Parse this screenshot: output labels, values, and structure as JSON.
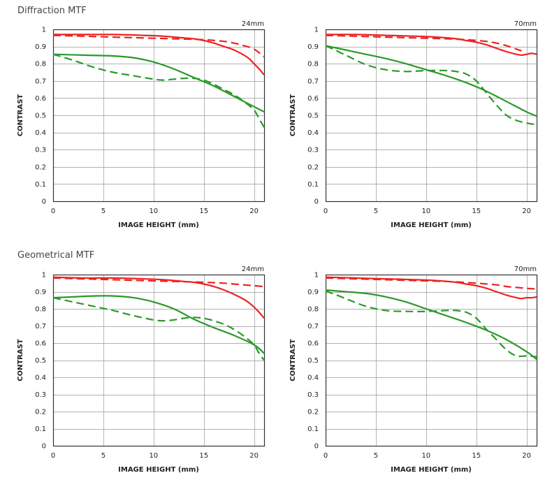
{
  "sections": {
    "diffraction": "Diffraction MTF",
    "geometrical": "Geometrical MTF"
  },
  "colors": {
    "red": "#ee2222",
    "green": "#2a9a2a",
    "grid": "#999999",
    "frame": "#333333"
  },
  "chart_data": [
    {
      "type": "line",
      "section": "Diffraction MTF",
      "focal_label": "24mm",
      "xlabel": "IMAGE HEIGHT (mm)",
      "ylabel": "CONTRAST",
      "xlim": [
        0,
        21
      ],
      "ylim": [
        0,
        1
      ],
      "xticks": [
        0,
        5,
        10,
        15,
        20
      ],
      "yticks": [
        0,
        0.1,
        0.2,
        0.3,
        0.4,
        0.5,
        0.6,
        0.7,
        0.8,
        0.9,
        1
      ],
      "ytick_labels": [
        "0",
        "0.1",
        "0.2",
        "0.3",
        "0.4",
        "0.5",
        "0.6",
        "0.7",
        "0.8",
        "0.9",
        "1"
      ],
      "grid": true,
      "series": [
        {
          "color": "red",
          "style": "solid",
          "x": [
            0,
            3,
            6,
            9,
            11,
            13,
            14,
            15,
            16,
            17,
            18,
            19,
            19.5,
            20,
            20.5,
            21
          ],
          "y": [
            0.97,
            0.97,
            0.97,
            0.965,
            0.96,
            0.95,
            0.945,
            0.935,
            0.92,
            0.9,
            0.88,
            0.85,
            0.83,
            0.8,
            0.77,
            0.735
          ]
        },
        {
          "color": "red",
          "style": "dashed",
          "x": [
            0,
            3,
            6,
            9,
            12,
            15,
            17,
            18,
            19,
            20,
            21
          ],
          "y": [
            0.965,
            0.96,
            0.955,
            0.95,
            0.945,
            0.94,
            0.93,
            0.92,
            0.905,
            0.885,
            0.84
          ]
        },
        {
          "color": "green",
          "style": "solid",
          "x": [
            0,
            3,
            6,
            8,
            10,
            12,
            14,
            16,
            18,
            20,
            21
          ],
          "y": [
            0.855,
            0.85,
            0.845,
            0.835,
            0.81,
            0.77,
            0.72,
            0.67,
            0.61,
            0.55,
            0.52
          ]
        },
        {
          "color": "green",
          "style": "dashed",
          "x": [
            0,
            2,
            4,
            6,
            8,
            10,
            11,
            12,
            13,
            14,
            15,
            16,
            17,
            18,
            19,
            20,
            20.5,
            21
          ],
          "y": [
            0.855,
            0.82,
            0.78,
            0.75,
            0.73,
            0.71,
            0.705,
            0.71,
            0.715,
            0.715,
            0.705,
            0.68,
            0.65,
            0.62,
            0.58,
            0.53,
            0.48,
            0.43
          ]
        }
      ]
    },
    {
      "type": "line",
      "section": "Diffraction MTF",
      "focal_label": "70mm",
      "xlabel": "IMAGE HEIGHT (mm)",
      "ylabel": "CONTRAST",
      "xlim": [
        0,
        21
      ],
      "ylim": [
        0,
        1
      ],
      "xticks": [
        0,
        5,
        10,
        15,
        20
      ],
      "yticks": [
        0,
        0.1,
        0.2,
        0.3,
        0.4,
        0.5,
        0.6,
        0.7,
        0.8,
        0.9,
        1
      ],
      "ytick_labels": [
        "0",
        "0.1",
        "0.2",
        "0.3",
        "0.4",
        "0.5",
        "0.6",
        "0.7",
        "0.8",
        "0.9",
        "1"
      ],
      "grid": true,
      "series": [
        {
          "color": "red",
          "style": "solid",
          "x": [
            0,
            3,
            6,
            9,
            11,
            13,
            14,
            15,
            16,
            17,
            18,
            19,
            19.5,
            20,
            20.5,
            21
          ],
          "y": [
            0.97,
            0.97,
            0.965,
            0.96,
            0.955,
            0.945,
            0.935,
            0.925,
            0.91,
            0.89,
            0.87,
            0.855,
            0.85,
            0.855,
            0.86,
            0.855
          ]
        },
        {
          "color": "red",
          "style": "dashed",
          "x": [
            0,
            3,
            6,
            9,
            12,
            14,
            16,
            17,
            18,
            19,
            19.5
          ],
          "y": [
            0.965,
            0.96,
            0.955,
            0.95,
            0.945,
            0.94,
            0.93,
            0.92,
            0.905,
            0.885,
            0.875
          ]
        },
        {
          "color": "green",
          "style": "solid",
          "x": [
            0,
            2,
            4,
            6,
            8,
            10,
            12,
            14,
            16,
            18,
            20,
            21
          ],
          "y": [
            0.905,
            0.88,
            0.855,
            0.83,
            0.8,
            0.765,
            0.73,
            0.69,
            0.64,
            0.58,
            0.52,
            0.495
          ]
        },
        {
          "color": "green",
          "style": "dashed",
          "x": [
            0,
            2,
            4,
            6,
            8,
            10,
            12,
            13,
            14,
            15,
            16,
            17,
            18,
            19,
            20,
            21
          ],
          "y": [
            0.905,
            0.85,
            0.795,
            0.765,
            0.755,
            0.76,
            0.76,
            0.755,
            0.74,
            0.7,
            0.63,
            0.56,
            0.5,
            0.47,
            0.455,
            0.445
          ]
        }
      ]
    },
    {
      "type": "line",
      "section": "Geometrical MTF",
      "focal_label": "24mm",
      "xlabel": "IMAGE HEIGHT (mm)",
      "ylabel": "CONTRAST",
      "xlim": [
        0,
        21
      ],
      "ylim": [
        0,
        1
      ],
      "xticks": [
        0,
        5,
        10,
        15,
        20
      ],
      "yticks": [
        0,
        0.1,
        0.2,
        0.3,
        0.4,
        0.5,
        0.6,
        0.7,
        0.8,
        0.9,
        1
      ],
      "ytick_labels": [
        "0",
        "0.1",
        "0.2",
        "0.3",
        "0.4",
        "0.5",
        "0.6",
        "0.7",
        "0.8",
        "0.9",
        "1"
      ],
      "grid": true,
      "series": [
        {
          "color": "red",
          "style": "solid",
          "x": [
            0,
            3,
            6,
            9,
            11,
            13,
            14,
            15,
            16,
            17,
            18,
            19,
            19.5,
            20,
            20.5,
            21
          ],
          "y": [
            0.985,
            0.98,
            0.98,
            0.975,
            0.97,
            0.96,
            0.955,
            0.945,
            0.93,
            0.91,
            0.885,
            0.855,
            0.835,
            0.81,
            0.78,
            0.745
          ]
        },
        {
          "color": "red",
          "style": "dashed",
          "x": [
            0,
            3,
            6,
            9,
            12,
            15,
            17,
            18,
            19,
            20,
            21
          ],
          "y": [
            0.98,
            0.975,
            0.97,
            0.965,
            0.96,
            0.955,
            0.95,
            0.945,
            0.94,
            0.935,
            0.93
          ]
        },
        {
          "color": "green",
          "style": "solid",
          "x": [
            0,
            2,
            4,
            6,
            8,
            10,
            12,
            14,
            16,
            18,
            20,
            21
          ],
          "y": [
            0.865,
            0.87,
            0.875,
            0.875,
            0.865,
            0.84,
            0.8,
            0.74,
            0.69,
            0.645,
            0.59,
            0.54
          ]
        },
        {
          "color": "green",
          "style": "dashed",
          "x": [
            0,
            2,
            4,
            6,
            8,
            10,
            11,
            12,
            13,
            14,
            15,
            16,
            17,
            18,
            19,
            20,
            20.5,
            21
          ],
          "y": [
            0.865,
            0.84,
            0.815,
            0.79,
            0.76,
            0.735,
            0.73,
            0.735,
            0.745,
            0.75,
            0.745,
            0.73,
            0.71,
            0.68,
            0.64,
            0.59,
            0.54,
            0.5
          ]
        }
      ]
    },
    {
      "type": "line",
      "section": "Geometrical MTF",
      "focal_label": "70mm",
      "xlabel": "IMAGE HEIGHT (mm)",
      "ylabel": "CONTRAST",
      "xlim": [
        0,
        21
      ],
      "ylim": [
        0,
        1
      ],
      "xticks": [
        0,
        5,
        10,
        15,
        20
      ],
      "yticks": [
        0,
        0.1,
        0.2,
        0.3,
        0.4,
        0.5,
        0.6,
        0.7,
        0.8,
        0.9,
        1
      ],
      "ytick_labels": [
        "0",
        "0.1",
        "0.2",
        "0.3",
        "0.4",
        "0.5",
        "0.6",
        "0.7",
        "0.8",
        "0.9",
        "1"
      ],
      "grid": true,
      "series": [
        {
          "color": "red",
          "style": "solid",
          "x": [
            0,
            3,
            6,
            9,
            11,
            13,
            14,
            15,
            16,
            17,
            18,
            19,
            19.5,
            20,
            20.5,
            21
          ],
          "y": [
            0.985,
            0.98,
            0.975,
            0.97,
            0.965,
            0.955,
            0.945,
            0.935,
            0.92,
            0.9,
            0.88,
            0.865,
            0.86,
            0.865,
            0.865,
            0.87
          ]
        },
        {
          "color": "red",
          "style": "dashed",
          "x": [
            0,
            3,
            6,
            9,
            12,
            15,
            17,
            18,
            19,
            20,
            21
          ],
          "y": [
            0.98,
            0.975,
            0.97,
            0.965,
            0.96,
            0.95,
            0.94,
            0.93,
            0.925,
            0.92,
            0.915
          ]
        },
        {
          "color": "green",
          "style": "solid",
          "x": [
            0,
            2,
            4,
            6,
            8,
            10,
            12,
            14,
            16,
            18,
            20,
            21
          ],
          "y": [
            0.91,
            0.9,
            0.89,
            0.87,
            0.84,
            0.8,
            0.76,
            0.72,
            0.675,
            0.62,
            0.55,
            0.505
          ]
        },
        {
          "color": "green",
          "style": "dashed",
          "x": [
            0,
            2,
            4,
            6,
            8,
            10,
            12,
            13,
            14,
            15,
            16,
            17,
            18,
            19,
            20,
            21
          ],
          "y": [
            0.905,
            0.86,
            0.815,
            0.79,
            0.785,
            0.785,
            0.79,
            0.79,
            0.78,
            0.745,
            0.68,
            0.62,
            0.56,
            0.525,
            0.525,
            0.52
          ]
        }
      ]
    }
  ]
}
